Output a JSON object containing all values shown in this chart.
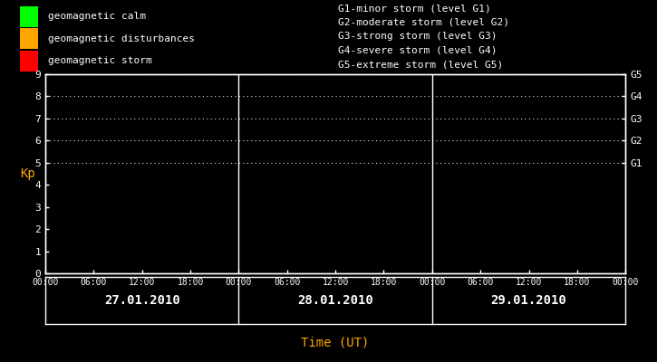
{
  "bg_color": "#000000",
  "text_color": "#ffffff",
  "orange_color": "#ffa500",
  "title": "Time (UT)",
  "ylabel": "Kp",
  "ylim": [
    0,
    9
  ],
  "yticks": [
    0,
    1,
    2,
    3,
    4,
    5,
    6,
    7,
    8,
    9
  ],
  "days": [
    "27.01.2010",
    "28.01.2010",
    "29.01.2010"
  ],
  "all_xtick_labels": [
    "00:00",
    "06:00",
    "12:00",
    "18:00",
    "00:00",
    "06:00",
    "12:00",
    "18:00",
    "00:00",
    "06:00",
    "12:00",
    "18:00",
    "00:00"
  ],
  "right_labels": [
    {
      "text": "G5",
      "kp": 9
    },
    {
      "text": "G4",
      "kp": 8
    },
    {
      "text": "G3",
      "kp": 7
    },
    {
      "text": "G2",
      "kp": 6
    },
    {
      "text": "G1",
      "kp": 5
    }
  ],
  "legend_items": [
    {
      "color": "#00ff00",
      "label": "geomagnetic calm"
    },
    {
      "color": "#ffa500",
      "label": "geomagnetic disturbances"
    },
    {
      "color": "#ff0000",
      "label": "geomagnetic storm"
    }
  ],
  "right_legend_lines": [
    "G1-minor storm (level G1)",
    "G2-moderate storm (level G2)",
    "G3-strong storm (level G3)",
    "G4-severe storm (level G4)",
    "G5-extreme storm (level G5)"
  ],
  "dot_levels": [
    5,
    6,
    7,
    8,
    9
  ],
  "grid_dot_color": "#ffffff",
  "divider_color": "#ffffff",
  "font_family": "monospace",
  "font_size": 8,
  "day_font_size": 10,
  "xlabel_fontsize": 10,
  "ylabel_fontsize": 10
}
